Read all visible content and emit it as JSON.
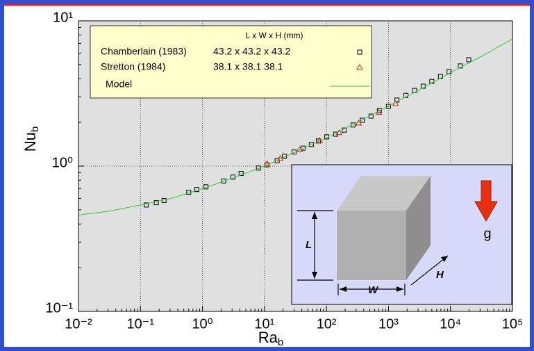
{
  "chart_data": {
    "type": "scatter",
    "xlabel": {
      "main": "Ra",
      "sub": "b"
    },
    "ylabel": {
      "main": "Nu",
      "sub": "b"
    },
    "xscale": "log",
    "yscale": "log",
    "grid": true,
    "xlim": [
      0.01,
      100000
    ],
    "ylim": [
      0.1,
      10
    ],
    "xticks": [
      {
        "value": 0.01,
        "label": "10⁻²"
      },
      {
        "value": 0.1,
        "label": "10⁻¹"
      },
      {
        "value": 1,
        "label": "10⁰"
      },
      {
        "value": 10,
        "label": "10¹"
      },
      {
        "value": 100,
        "label": "10²"
      },
      {
        "value": 1000,
        "label": "10³"
      },
      {
        "value": 10000,
        "label": "10⁴"
      },
      {
        "value": 100000,
        "label": "10⁵"
      }
    ],
    "yticks": [
      {
        "value": 0.1,
        "label": "10⁻¹"
      },
      {
        "value": 1,
        "label": "10⁰"
      },
      {
        "value": 10,
        "label": "10¹"
      }
    ],
    "legend_header": "L x W x H (mm)",
    "series": [
      {
        "name": "Chamberlain (1983)",
        "dimensions": "43.2 x 43.2 x 43.2",
        "marker": "square",
        "color": "#000000",
        "x": [
          0.124,
          0.18,
          0.24,
          0.6,
          0.81,
          1.14,
          2.2,
          3.1,
          4.2,
          8,
          11,
          16,
          21,
          30,
          42,
          57,
          74,
          101,
          141,
          193,
          268,
          378,
          523,
          713,
          1000,
          1370,
          1910,
          2640,
          3630,
          5000,
          6900,
          9500,
          14400,
          19700
        ],
        "y": [
          0.54,
          0.56,
          0.58,
          0.66,
          0.69,
          0.72,
          0.79,
          0.84,
          0.89,
          0.97,
          1.02,
          1.09,
          1.17,
          1.25,
          1.33,
          1.41,
          1.49,
          1.59,
          1.66,
          1.77,
          1.92,
          2.07,
          2.21,
          2.41,
          2.58,
          2.85,
          3.07,
          3.32,
          3.55,
          3.83,
          4.14,
          4.47,
          4.89,
          5.4
        ]
      },
      {
        "name": "Stretton (1984)",
        "dimensions": "38.1 x 38.1 38.1",
        "marker": "triangle",
        "color": "#e02020",
        "x": [
          11,
          18,
          37,
          78,
          160,
          330,
          700,
          1300
        ],
        "y": [
          1.04,
          1.13,
          1.3,
          1.5,
          1.7,
          1.98,
          2.35,
          2.7
        ]
      },
      {
        "name": "Model",
        "marker": "line",
        "color": "#33cc33",
        "x": [
          0.01,
          0.0316,
          0.1,
          0.316,
          1,
          3.16,
          10,
          31.6,
          100,
          316,
          1000,
          3160,
          10000,
          31600,
          100000
        ],
        "y": [
          0.46,
          0.49,
          0.54,
          0.6,
          0.7,
          0.83,
          1.0,
          1.25,
          1.57,
          2.0,
          2.6,
          3.35,
          4.4,
          5.7,
          7.5
        ]
      }
    ],
    "inset": {
      "labels": [
        "L",
        "W",
        "H",
        "g"
      ]
    }
  }
}
